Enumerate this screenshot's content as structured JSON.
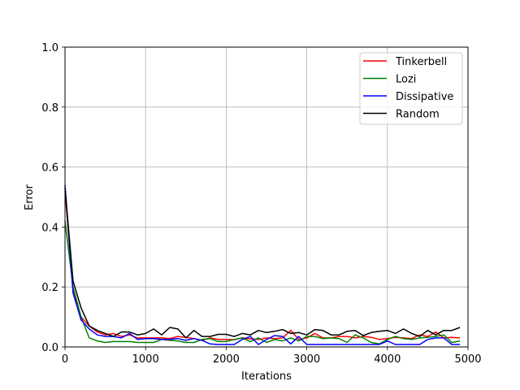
{
  "chart_data": {
    "type": "line",
    "title": "",
    "xlabel": "Iterations",
    "ylabel": "Error",
    "xlim": [
      0,
      5000
    ],
    "ylim": [
      0,
      1.0
    ],
    "xticks": [
      0,
      1000,
      2000,
      3000,
      4000,
      5000
    ],
    "xtick_labels": [
      "0",
      "1000",
      "2000",
      "3000",
      "4000",
      "5000"
    ],
    "yticks": [
      0.0,
      0.2,
      0.4,
      0.6,
      0.8,
      1.0
    ],
    "ytick_labels": [
      "0.0",
      "0.2",
      "0.4",
      "0.6",
      "0.8",
      "1.0"
    ],
    "grid": true,
    "legend_position": "top-right",
    "x": [
      0,
      100,
      200,
      300,
      400,
      500,
      600,
      700,
      800,
      900,
      1000,
      1100,
      1200,
      1300,
      1400,
      1500,
      1600,
      1700,
      1800,
      1900,
      2000,
      2100,
      2200,
      2300,
      2400,
      2500,
      2600,
      2700,
      2800,
      2900,
      3000,
      3100,
      3200,
      3300,
      3400,
      3500,
      3600,
      3700,
      3800,
      3900,
      4000,
      4100,
      4200,
      4300,
      4400,
      4500,
      4600,
      4700,
      4800,
      4900
    ],
    "series": [
      {
        "name": "Tinkerbell",
        "color": "#ff0000",
        "values": [
          0.52,
          0.19,
          0.1,
          0.07,
          0.05,
          0.04,
          0.045,
          0.035,
          0.04,
          0.03,
          0.03,
          0.03,
          0.03,
          0.028,
          0.035,
          0.032,
          0.028,
          0.022,
          0.03,
          0.025,
          0.025,
          0.024,
          0.03,
          0.027,
          0.025,
          0.03,
          0.028,
          0.03,
          0.055,
          0.025,
          0.03,
          0.045,
          0.03,
          0.03,
          0.035,
          0.035,
          0.03,
          0.035,
          0.032,
          0.025,
          0.028,
          0.032,
          0.03,
          0.028,
          0.04,
          0.035,
          0.05,
          0.03,
          0.032,
          0.03
        ]
      },
      {
        "name": "Lozi",
        "color": "#008000",
        "values": [
          0.42,
          0.2,
          0.1,
          0.03,
          0.02,
          0.015,
          0.018,
          0.018,
          0.018,
          0.015,
          0.015,
          0.015,
          0.025,
          0.022,
          0.02,
          0.015,
          0.015,
          0.025,
          0.028,
          0.018,
          0.018,
          0.025,
          0.03,
          0.018,
          0.03,
          0.015,
          0.025,
          0.02,
          0.03,
          0.02,
          0.035,
          0.035,
          0.028,
          0.03,
          0.028,
          0.015,
          0.04,
          0.03,
          0.015,
          0.01,
          0.025,
          0.035,
          0.028,
          0.025,
          0.03,
          0.032,
          0.035,
          0.04,
          0.015,
          0.02
        ]
      },
      {
        "name": "Dissipative",
        "color": "#0000ff",
        "values": [
          0.54,
          0.18,
          0.09,
          0.06,
          0.04,
          0.035,
          0.035,
          0.03,
          0.045,
          0.025,
          0.028,
          0.028,
          0.025,
          0.025,
          0.028,
          0.022,
          0.028,
          0.022,
          0.01,
          0.008,
          0.008,
          0.008,
          0.025,
          0.035,
          0.008,
          0.025,
          0.038,
          0.035,
          0.01,
          0.035,
          0.008,
          0.008,
          0.008,
          0.008,
          0.008,
          0.008,
          0.008,
          0.008,
          0.008,
          0.008,
          0.02,
          0.008,
          0.008,
          0.008,
          0.008,
          0.025,
          0.03,
          0.03,
          0.008,
          0.008
        ]
      },
      {
        "name": "Random",
        "color": "#000000",
        "values": [
          0.53,
          0.22,
          0.13,
          0.07,
          0.055,
          0.045,
          0.035,
          0.05,
          0.05,
          0.04,
          0.045,
          0.06,
          0.04,
          0.065,
          0.06,
          0.03,
          0.055,
          0.035,
          0.035,
          0.042,
          0.042,
          0.035,
          0.045,
          0.04,
          0.055,
          0.048,
          0.052,
          0.058,
          0.045,
          0.048,
          0.04,
          0.058,
          0.055,
          0.04,
          0.04,
          0.052,
          0.055,
          0.038,
          0.048,
          0.052,
          0.055,
          0.045,
          0.06,
          0.045,
          0.035,
          0.055,
          0.04,
          0.055,
          0.055,
          0.065
        ]
      }
    ]
  }
}
